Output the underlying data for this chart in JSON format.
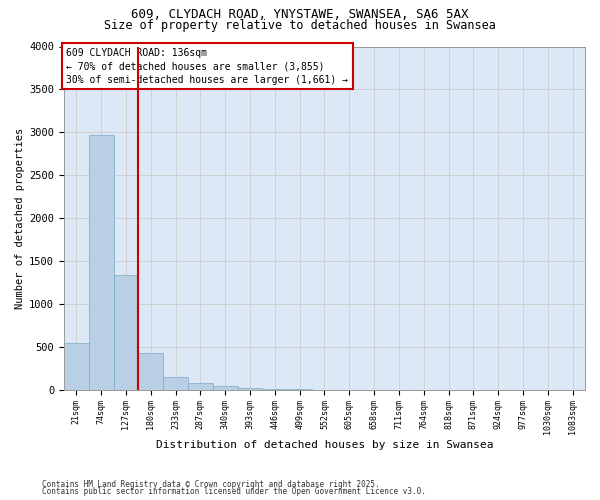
{
  "title_line1": "609, CLYDACH ROAD, YNYSTAWE, SWANSEA, SA6 5AX",
  "title_line2": "Size of property relative to detached houses in Swansea",
  "xlabel": "Distribution of detached houses by size in Swansea",
  "ylabel": "Number of detached properties",
  "categories": [
    "21sqm",
    "74sqm",
    "127sqm",
    "180sqm",
    "233sqm",
    "287sqm",
    "340sqm",
    "393sqm",
    "446sqm",
    "499sqm",
    "552sqm",
    "605sqm",
    "658sqm",
    "711sqm",
    "764sqm",
    "818sqm",
    "871sqm",
    "924sqm",
    "977sqm",
    "1030sqm",
    "1083sqm"
  ],
  "values": [
    550,
    2970,
    1340,
    425,
    150,
    80,
    45,
    25,
    10,
    5,
    0,
    0,
    0,
    0,
    0,
    0,
    0,
    0,
    0,
    0,
    0
  ],
  "bar_color": "#b8cfe4",
  "bar_edge_color": "#7aaaca",
  "grid_color": "#cccccc",
  "background_color": "#dce8f5",
  "red_line_index": 2,
  "red_line_color": "#cc0000",
  "annotation_line1": "609 CLYDACH ROAD: 136sqm",
  "annotation_line2": "← 70% of detached houses are smaller (3,855)",
  "annotation_line3": "30% of semi-detached houses are larger (1,661) →",
  "annotation_box_color": "#cc0000",
  "footer_line1": "Contains HM Land Registry data © Crown copyright and database right 2025.",
  "footer_line2": "Contains public sector information licensed under the Open Government Licence v3.0.",
  "ylim": [
    0,
    4000
  ],
  "yticks": [
    0,
    500,
    1000,
    1500,
    2000,
    2500,
    3000,
    3500,
    4000
  ]
}
